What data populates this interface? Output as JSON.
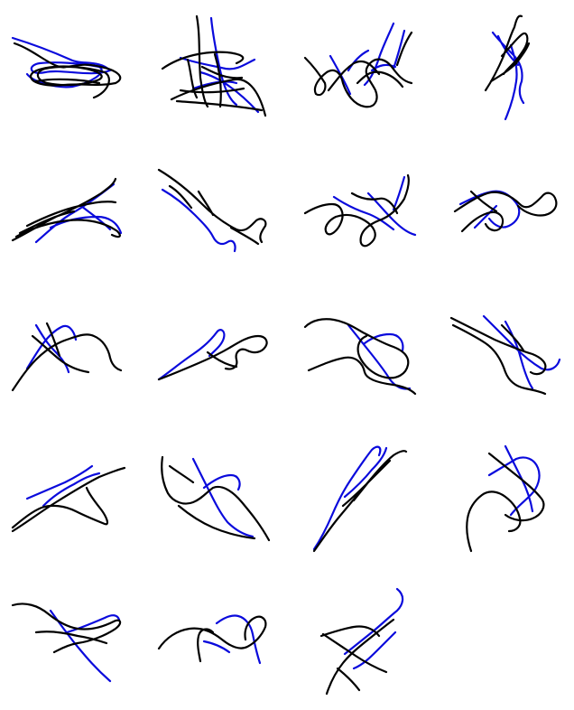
{
  "figure": {
    "background": "#ffffff",
    "colors": {
      "primary": "#000000",
      "secondary": "#0a0adc"
    },
    "grid": {
      "rows": 5,
      "columns": 4,
      "panel_count": 19
    },
    "panels": [
      {
        "row": 1,
        "col": 1,
        "shape": "flat-horizontal-scribble"
      },
      {
        "row": 1,
        "col": 2,
        "shape": "tangled-fan"
      },
      {
        "row": 1,
        "col": 3,
        "shape": "zigzag-cluster"
      },
      {
        "row": 1,
        "col": 4,
        "shape": "vertical-knot"
      },
      {
        "row": 2,
        "col": 1,
        "shape": "diagonal-ribbon"
      },
      {
        "row": 2,
        "col": 2,
        "shape": "sparse-descending-line"
      },
      {
        "row": 2,
        "col": 3,
        "shape": "wide-loops"
      },
      {
        "row": 2,
        "col": 4,
        "shape": "dense-knot-with-tail"
      },
      {
        "row": 3,
        "col": 1,
        "shape": "upper-left-knot"
      },
      {
        "row": 3,
        "col": 2,
        "shape": "right-knot-rising"
      },
      {
        "row": 3,
        "col": 3,
        "shape": "rounded-loop-mesh"
      },
      {
        "row": 3,
        "col": 4,
        "shape": "open-crossing-lines"
      },
      {
        "row": 4,
        "col": 1,
        "shape": "long-diagonal-wedge"
      },
      {
        "row": 4,
        "col": 2,
        "shape": "loop-with-tail"
      },
      {
        "row": 4,
        "col": 3,
        "shape": "steep-diagonal-braid"
      },
      {
        "row": 4,
        "col": 4,
        "shape": "arc-cluster"
      },
      {
        "row": 5,
        "col": 1,
        "shape": "sideways-teardrop"
      },
      {
        "row": 5,
        "col": 2,
        "shape": "wave-with-peak"
      },
      {
        "row": 5,
        "col": 3,
        "shape": "crossed-diagonals"
      }
    ]
  }
}
